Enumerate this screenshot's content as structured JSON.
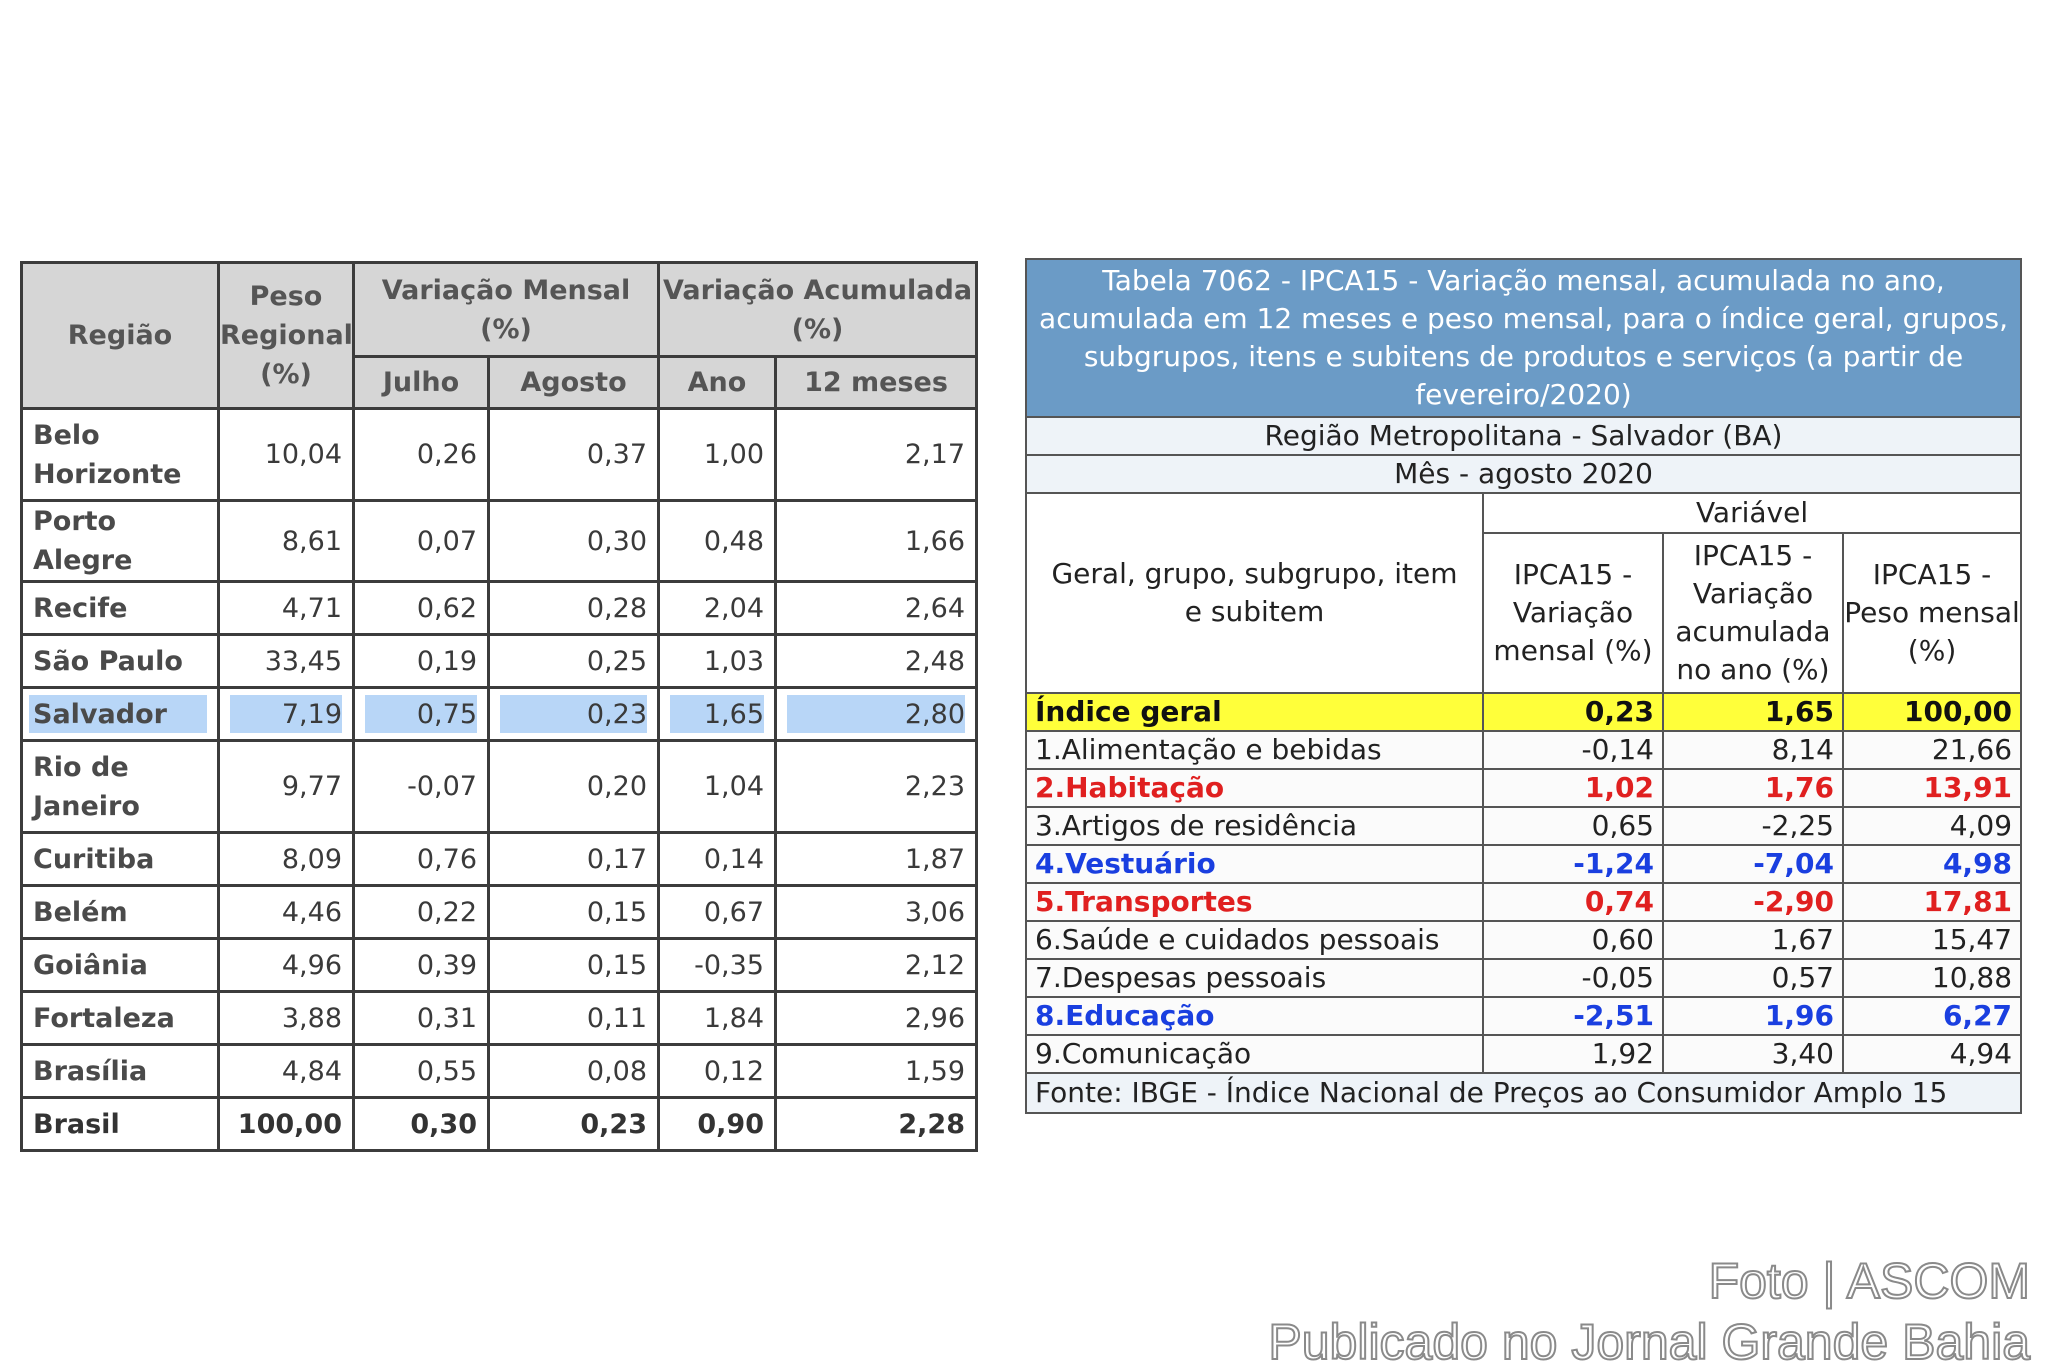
{
  "left_table": {
    "headers": {
      "regiao": "Região",
      "peso": "Peso Regional (%)",
      "variacao_mensal": "Variação Mensal (%)",
      "variacao_acumulada": "Variação Acumulada (%)",
      "julho": "Julho",
      "agosto": "Agosto",
      "ano": "Ano",
      "doze_meses": "12 meses"
    },
    "rows": [
      {
        "regiao": "Belo Horizonte",
        "peso": "10,04",
        "julho": "0,26",
        "agosto": "0,37",
        "ano": "1,00",
        "doze": "2,17"
      },
      {
        "regiao": "Porto Alegre",
        "peso": "8,61",
        "julho": "0,07",
        "agosto": "0,30",
        "ano": "0,48",
        "doze": "1,66"
      },
      {
        "regiao": "Recife",
        "peso": "4,71",
        "julho": "0,62",
        "agosto": "0,28",
        "ano": "2,04",
        "doze": "2,64"
      },
      {
        "regiao": "São Paulo",
        "peso": "33,45",
        "julho": "0,19",
        "agosto": "0,25",
        "ano": "1,03",
        "doze": "2,48"
      },
      {
        "regiao": "Salvador",
        "peso": "7,19",
        "julho": "0,75",
        "agosto": "0,23",
        "ano": "1,65",
        "doze": "2,80"
      },
      {
        "regiao": "Rio de Janeiro",
        "peso": "9,77",
        "julho": "-0,07",
        "agosto": "0,20",
        "ano": "1,04",
        "doze": "2,23"
      },
      {
        "regiao": "Curitiba",
        "peso": "8,09",
        "julho": "0,76",
        "agosto": "0,17",
        "ano": "0,14",
        "doze": "1,87"
      },
      {
        "regiao": "Belém",
        "peso": "4,46",
        "julho": "0,22",
        "agosto": "0,15",
        "ano": "0,67",
        "doze": "3,06"
      },
      {
        "regiao": "Goiânia",
        "peso": "4,96",
        "julho": "0,39",
        "agosto": "0,15",
        "ano": "-0,35",
        "doze": "2,12"
      },
      {
        "regiao": "Fortaleza",
        "peso": "3,88",
        "julho": "0,31",
        "agosto": "0,11",
        "ano": "1,84",
        "doze": "2,96"
      },
      {
        "regiao": "Brasília",
        "peso": "4,84",
        "julho": "0,55",
        "agosto": "0,08",
        "ano": "0,12",
        "doze": "1,59"
      },
      {
        "regiao": "Brasil",
        "peso": "100,00",
        "julho": "0,30",
        "agosto": "0,23",
        "ano": "0,90",
        "doze": "2,28"
      }
    ],
    "highlight_color": "#b8d6f7"
  },
  "right_table": {
    "title": "Tabela 7062 - IPCA15 - Variação mensal, acumulada no ano, acumulada em 12 meses e peso mensal, para o índice geral, grupos, subgrupos, itens e subitens de produtos e serviços (a partir de fevereiro/2020)",
    "region": "Região Metropolitana - Salvador (BA)",
    "month": "Mês - agosto 2020",
    "headers": {
      "item": "Geral, grupo, subgrupo, item e subitem",
      "variavel": "Variável",
      "var_mensal": "IPCA15 - Variação mensal (%)",
      "var_acum": "IPCA15 - Variação acumulada no ano (%)",
      "peso": "IPCA15 - Peso mensal (%)"
    },
    "rows": [
      {
        "item": "Índice geral",
        "mensal": "0,23",
        "acum": "1,65",
        "peso": "100,00"
      },
      {
        "item": "1.Alimentação e bebidas",
        "mensal": "-0,14",
        "acum": "8,14",
        "peso": "21,66"
      },
      {
        "item": "2.Habitação",
        "mensal": "1,02",
        "acum": "1,76",
        "peso": "13,91"
      },
      {
        "item": "3.Artigos de residência",
        "mensal": "0,65",
        "acum": "-2,25",
        "peso": "4,09"
      },
      {
        "item": "4.Vestuário",
        "mensal": "-1,24",
        "acum": "-7,04",
        "peso": "4,98"
      },
      {
        "item": "5.Transportes",
        "mensal": "0,74",
        "acum": "-2,90",
        "peso": "17,81"
      },
      {
        "item": "6.Saúde e cuidados pessoais",
        "mensal": "0,60",
        "acum": "1,67",
        "peso": "15,47"
      },
      {
        "item": "7.Despesas pessoais",
        "mensal": "-0,05",
        "acum": "0,57",
        "peso": "10,88"
      },
      {
        "item": "8.Educação",
        "mensal": "-2,51",
        "acum": "1,96",
        "peso": "6,27"
      },
      {
        "item": "9.Comunicação",
        "mensal": "1,92",
        "acum": "3,40",
        "peso": "4,94"
      }
    ],
    "source": "Fonte: IBGE - Índice Nacional de Preços ao Consumidor Amplo 15",
    "colors": {
      "title_bg": "#6b9bc6",
      "geral_bg": "#ffff3a",
      "red_text": "#e02020",
      "blue_text": "#1a3fe0"
    }
  },
  "watermark": {
    "line1": "Foto | ASCOM",
    "line2": "Publicado no Jornal Grande Bahia"
  }
}
